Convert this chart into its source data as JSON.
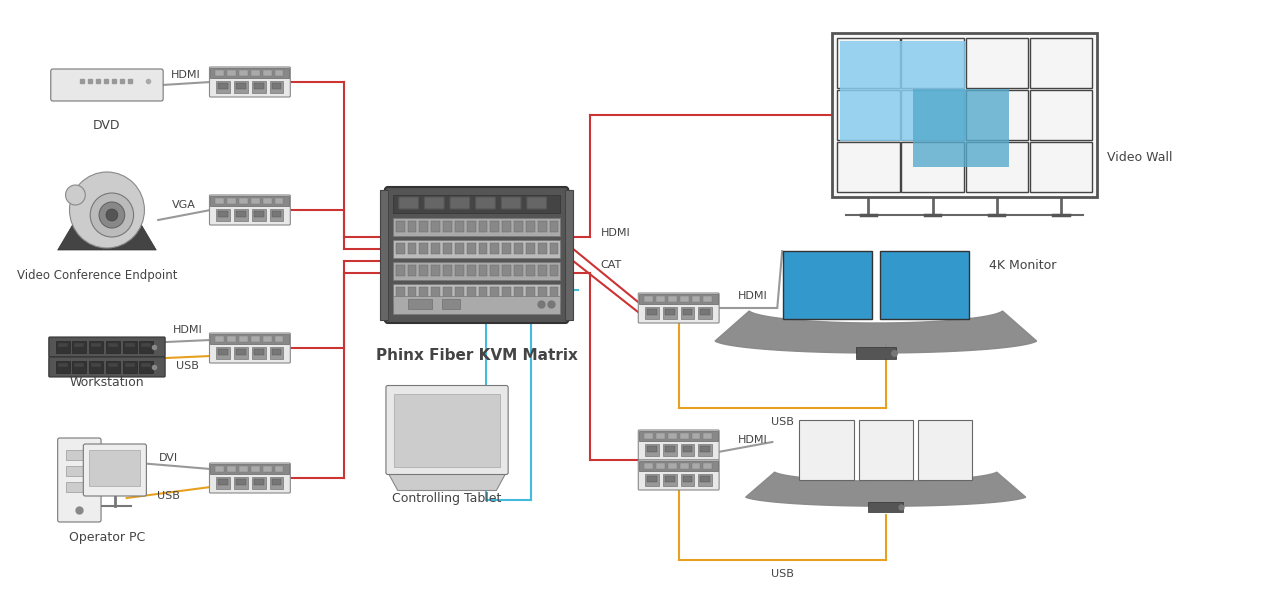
{
  "bg_color": "#ffffff",
  "text_color": "#444444",
  "line_red": "#cc3333",
  "line_orange": "#e8a020",
  "line_blue": "#44bbdd",
  "line_gray": "#999999",
  "matrix_label": "Phinx Fiber KVM Matrix",
  "tablet_label": "Controlling Tablet",
  "video_wall_label": "Video Wall",
  "monitor_4k_label": "4K Monitor",
  "dvd_label": "DVD",
  "cam_label": "Video Conference Endpoint",
  "work_label": "Workstation",
  "pc_label": "Operator PC"
}
